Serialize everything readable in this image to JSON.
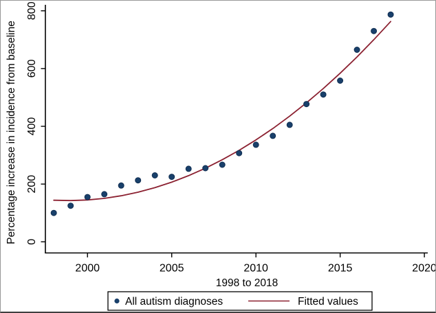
{
  "figure": {
    "kind": "stata-style scatter plot with quadratic fitted curve"
  },
  "colors": {
    "dot_fill": "#19406b",
    "dot_stroke": "#122f52",
    "fit_line": "#8b2030",
    "axis": "#000000",
    "background": "#ffffff",
    "legend_border": "#000000"
  },
  "chart_data": {
    "type": "scatter",
    "title": "",
    "xlabel": "1998 to 2018",
    "ylabel": "Percentage increase in incidence from baseline",
    "x": [
      1998,
      1999,
      2000,
      2001,
      2002,
      2003,
      2004,
      2005,
      2006,
      2007,
      2008,
      2009,
      2010,
      2011,
      2012,
      2013,
      2014,
      2015,
      2016,
      2017,
      2018
    ],
    "series": [
      {
        "name": "All autism diagnoses",
        "type": "scatter",
        "values": [
          100,
          125,
          155,
          165,
          195,
          213,
          230,
          225,
          253,
          255,
          267,
          307,
          336,
          367,
          405,
          477,
          510,
          558,
          665,
          730,
          787
        ]
      },
      {
        "name": "Fitted values",
        "type": "line",
        "values": [
          144.0,
          142.8,
          145.0,
          150.5,
          159.4,
          171.8,
          187.5,
          206.6,
          229.1,
          254.9,
          284.2,
          316.8,
          352.9,
          392.3,
          435.1,
          481.3,
          530.8,
          583.8,
          640.2,
          699.9,
          763.0
        ]
      }
    ],
    "x_ticks": [
      2000,
      2005,
      2010,
      2015,
      2020
    ],
    "y_ticks": [
      0,
      200,
      400,
      600,
      800
    ],
    "xlim": [
      1997.5,
      2020.2
    ],
    "ylim": [
      -38.5,
      816
    ],
    "grid": false,
    "legend_position": "bottom"
  }
}
